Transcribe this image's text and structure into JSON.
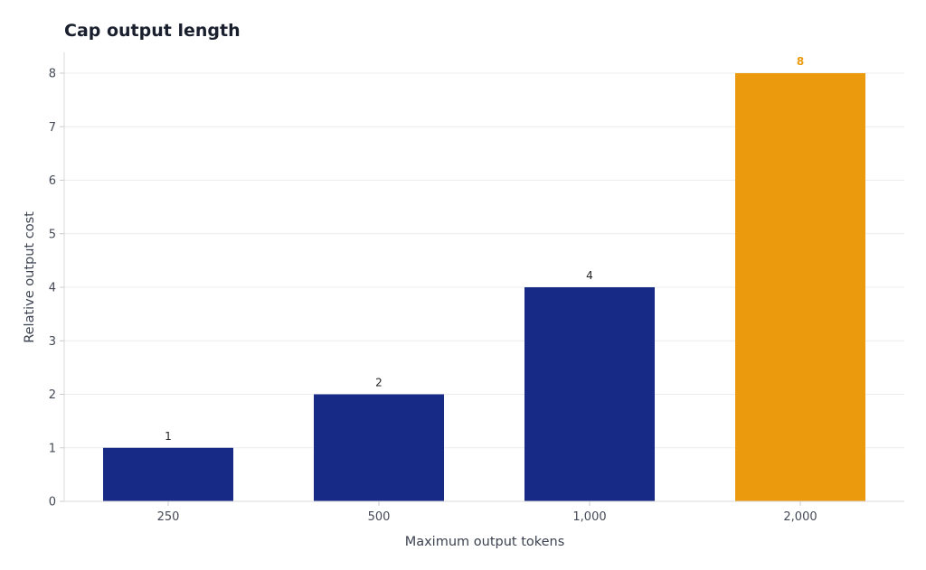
{
  "chart_data": {
    "type": "bar",
    "title": "Cap output length",
    "xlabel": "Maximum output tokens",
    "ylabel": "Relative output cost",
    "categories": [
      "250",
      "500",
      "1,000",
      "2,000"
    ],
    "values": [
      1,
      2,
      4,
      8
    ],
    "data_labels": [
      "1",
      "2",
      "4",
      "8"
    ],
    "ylim": [
      0,
      8.4
    ],
    "yticks": [
      0,
      1,
      2,
      3,
      4,
      5,
      6,
      7,
      8
    ],
    "ytick_labels": [
      "0",
      "1",
      "2",
      "3",
      "4",
      "5",
      "6",
      "7",
      "8"
    ],
    "grid": true,
    "legend": "none",
    "highlight_index": 3,
    "colors": {
      "bar": "#172a86",
      "highlight": "#ea9a0c"
    }
  }
}
